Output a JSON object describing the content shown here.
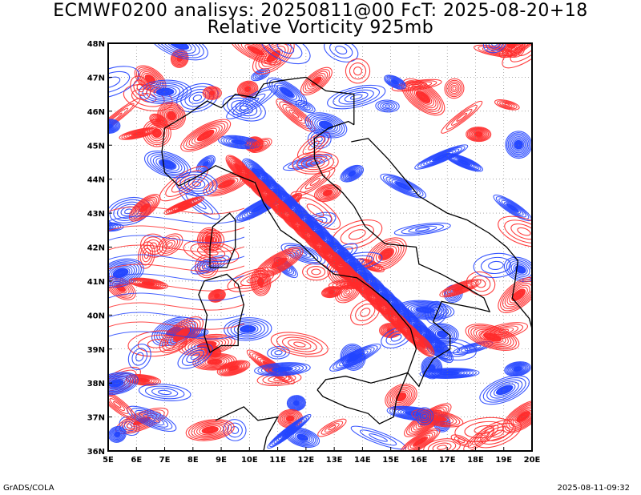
{
  "header": {
    "title_line1": "ECMWF0200 analisys: 20250811@00 FcT: 2025-08-20+18",
    "title_line2": "Relative Vorticity 925mb"
  },
  "map": {
    "lon_labels": [
      "5E",
      "6E",
      "7E",
      "8E",
      "9E",
      "10E",
      "11E",
      "12E",
      "13E",
      "14E",
      "15E",
      "16E",
      "17E",
      "18E",
      "19E",
      "20E"
    ],
    "lat_labels": [
      "36N",
      "37N",
      "38N",
      "39N",
      "40N",
      "41N",
      "42N",
      "43N",
      "44N",
      "45N",
      "46N",
      "47N",
      "48N"
    ],
    "lon_range": [
      5,
      20
    ],
    "lat_range": [
      36,
      48
    ],
    "positive_color": "#ff2a2a",
    "negative_color": "#2244ff",
    "coast_color": "#000000"
  },
  "footer": {
    "left": "GrADS/COLA",
    "right": "2025-08-11-09:32"
  }
}
